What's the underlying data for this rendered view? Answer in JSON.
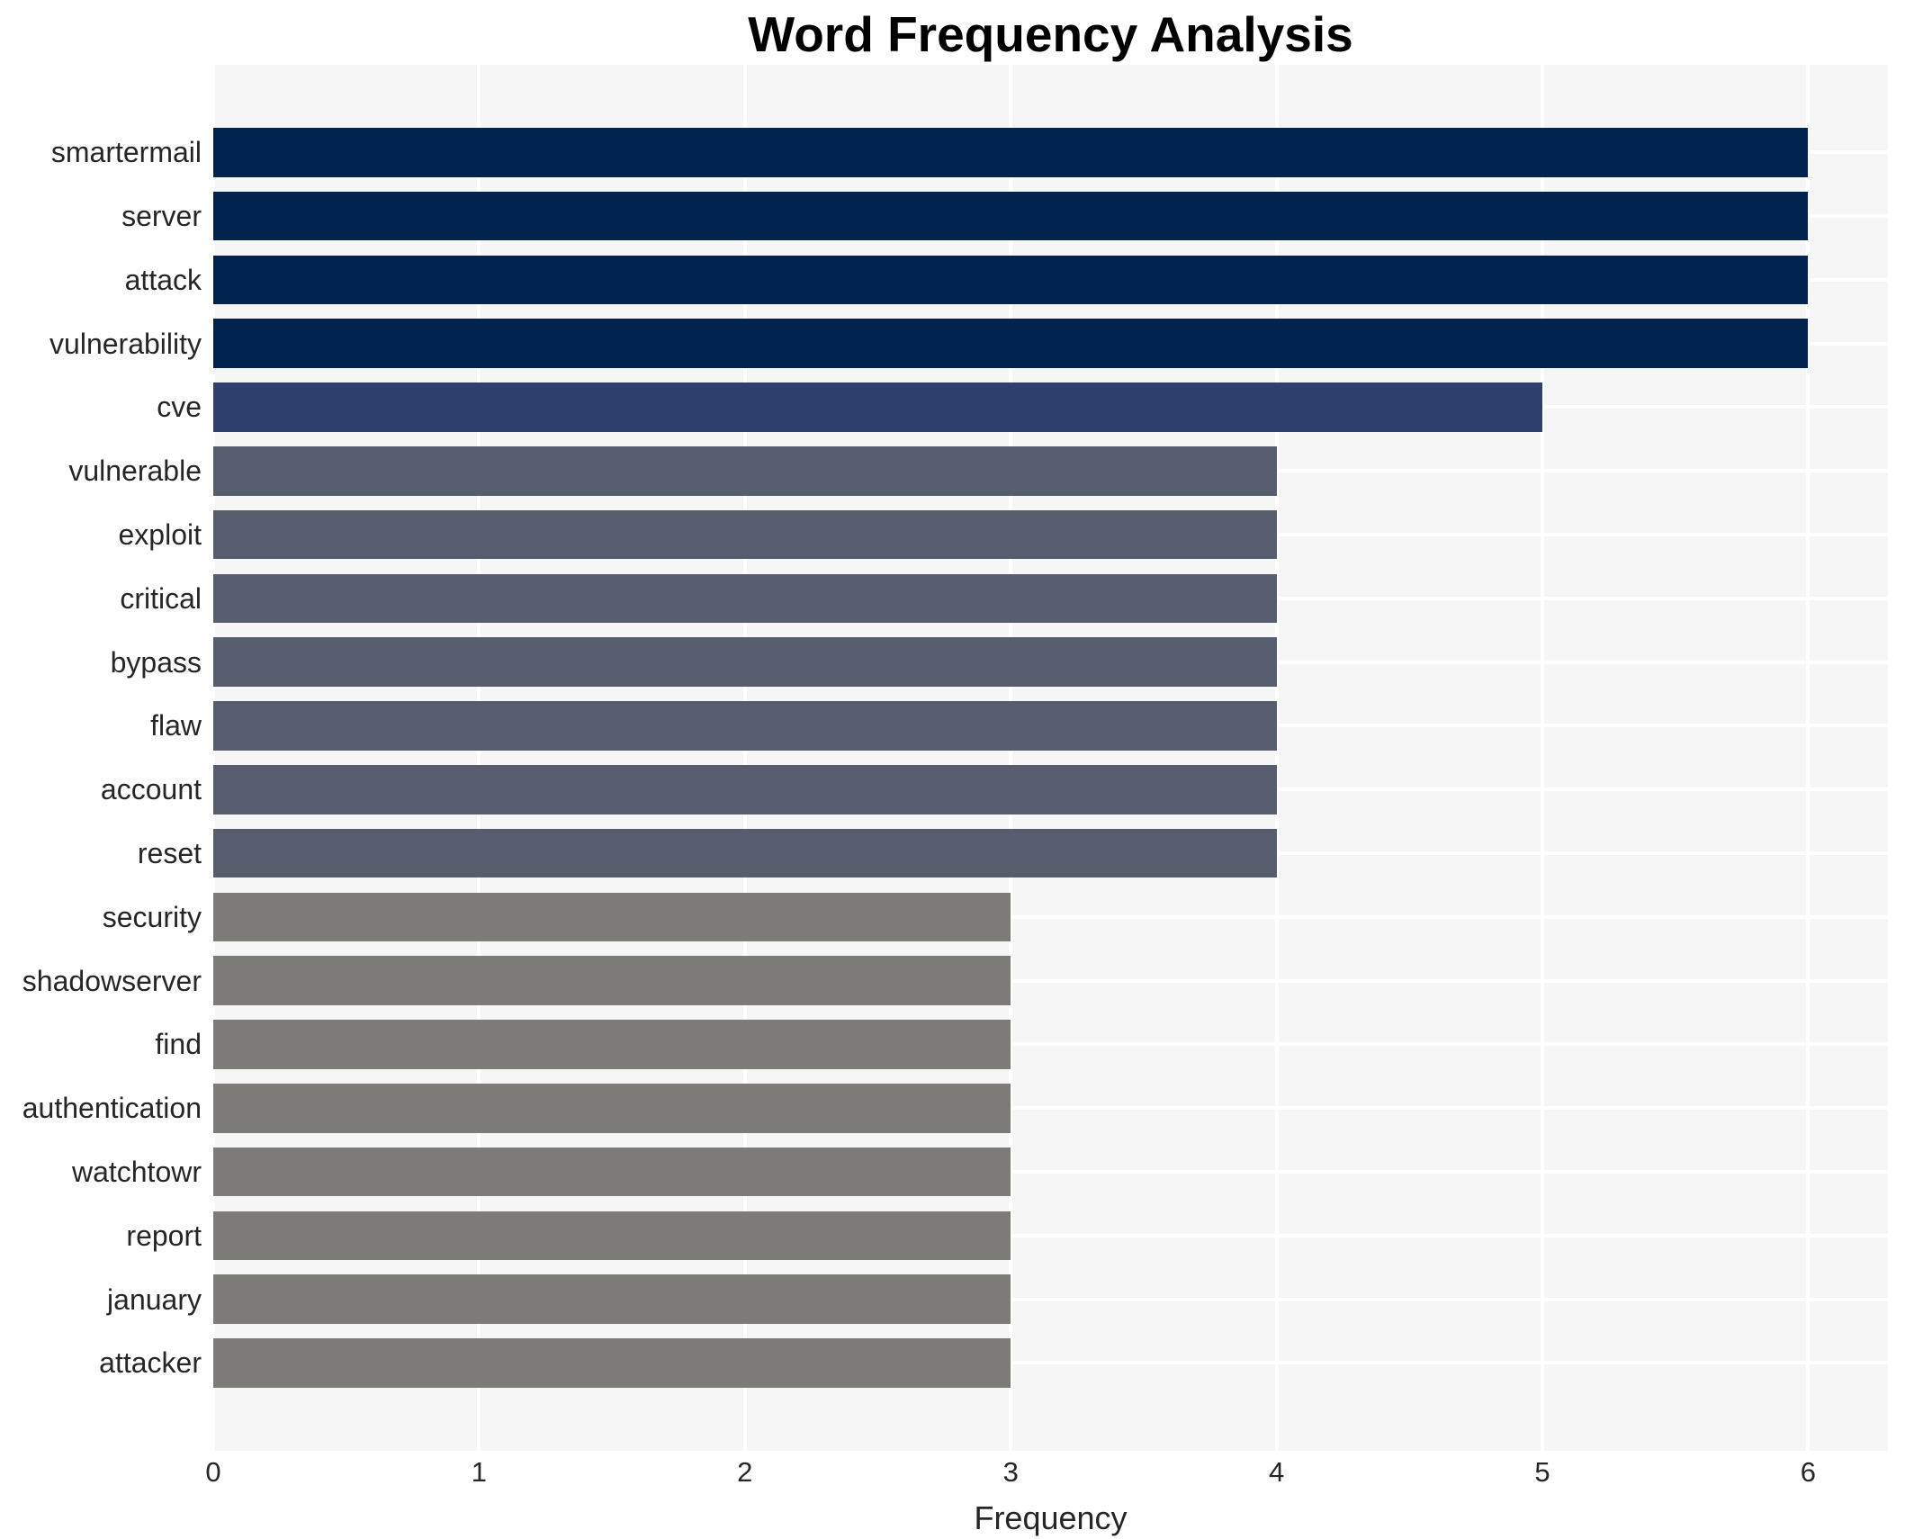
{
  "chart_data": {
    "type": "bar",
    "orientation": "horizontal",
    "title": "Word Frequency Analysis",
    "xlabel": "Frequency",
    "ylabel": "",
    "categories": [
      "smartermail",
      "server",
      "attack",
      "vulnerability",
      "cve",
      "vulnerable",
      "exploit",
      "critical",
      "bypass",
      "flaw",
      "account",
      "reset",
      "security",
      "shadowserver",
      "find",
      "authentication",
      "watchtowr",
      "report",
      "january",
      "attacker"
    ],
    "values": [
      6,
      6,
      6,
      6,
      5,
      4,
      4,
      4,
      4,
      4,
      4,
      4,
      3,
      3,
      3,
      3,
      3,
      3,
      3,
      3
    ],
    "xticks": [
      "0",
      "1",
      "2",
      "3",
      "4",
      "5",
      "6"
    ],
    "xlim": [
      0,
      6.3
    ],
    "grid": true,
    "legend_position": "none",
    "bar_colors_by_value": {
      "6": "#02234e",
      "5": "#30406e",
      "4": "#575d6d",
      "3": "#7c7b77"
    },
    "plot_background": "#f6f6f6",
    "grid_color": "#ffffff",
    "text_color": "#262626",
    "title_color": "#000000"
  }
}
